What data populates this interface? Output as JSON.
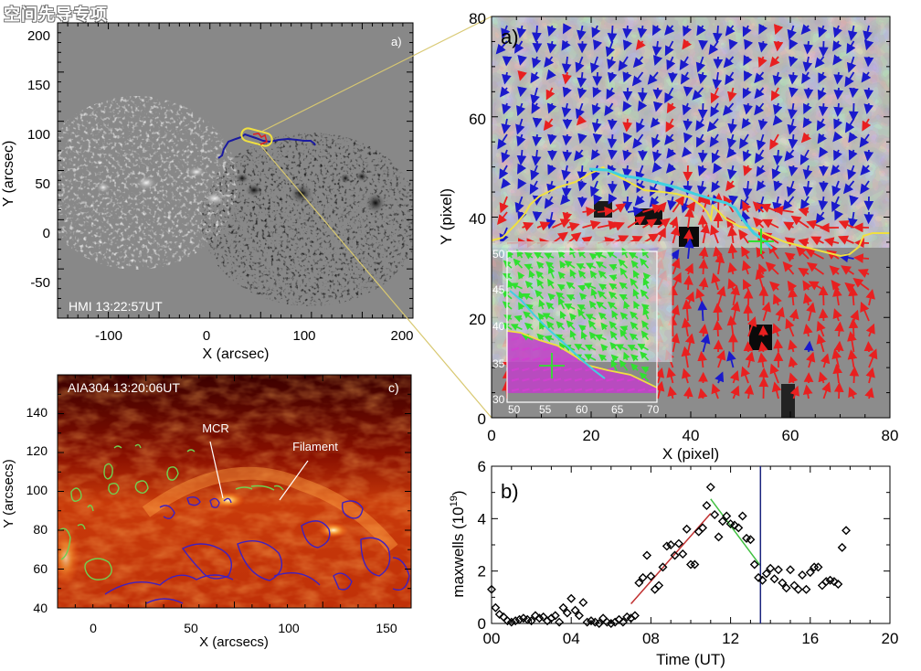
{
  "watermark": "空间先导专项",
  "panel_hmi": {
    "label": "a)",
    "annotation": "HMI 13:22:57UT",
    "xlabel": "X (arcsec)",
    "ylabel": "Y (arcsec)",
    "xticks": [
      "-100",
      "0",
      "100",
      "200"
    ],
    "yticks": [
      "200",
      "150",
      "100",
      "50",
      "0",
      "-50"
    ]
  },
  "panel_vector": {
    "label": "a)",
    "xlabel": "X (pixel)",
    "ylabel": "Y (pixel)",
    "xticks": [
      "0",
      "20",
      "40",
      "60",
      "80"
    ],
    "yticks": [
      "80",
      "60",
      "40",
      "20",
      "0"
    ],
    "inset": {
      "xticks": [
        "50",
        "55",
        "60",
        "65",
        "70"
      ],
      "yticks": [
        "50",
        "45",
        "40",
        "35",
        "30"
      ]
    }
  },
  "panel_aia": {
    "label": "c)",
    "annotation": "AIA304 13:20:06UT",
    "xlabel": "X (arcsecs)",
    "ylabel": "Y (arcsecs)",
    "xticks": [
      "0",
      "50",
      "100",
      "150"
    ],
    "yticks": [
      "140",
      "120",
      "100",
      "80",
      "60",
      "40"
    ],
    "callouts": [
      "MCR",
      "Filament"
    ]
  },
  "colors": {
    "positive_arrows": "#e82020",
    "negative_arrows": "#1a1acc",
    "pil_yellow": "#f0e040",
    "filament_cyan": "#40d0e0",
    "inset_green": "#30e030",
    "inset_magenta": "#d040d0",
    "fit_rise": "#c03030",
    "fit_decay": "#40c040",
    "marker_line": "#1a237e"
  },
  "chart_data": {
    "type": "scatter",
    "label": "b)",
    "xlabel": "Time (UT)",
    "ylabel": "maxwells (10",
    "ylabel_exp": "19",
    "ylabel_close": ")",
    "xticks": [
      "00",
      "04",
      "08",
      "12",
      "16",
      "20"
    ],
    "yticks": [
      "0",
      "2",
      "4",
      "6"
    ],
    "xlim": [
      0,
      20
    ],
    "ylim": [
      0,
      6
    ],
    "points": {
      "x": [
        0.0,
        0.2,
        0.4,
        0.6,
        0.8,
        1.0,
        1.2,
        1.4,
        1.6,
        1.8,
        2.0,
        2.2,
        2.4,
        2.6,
        2.8,
        3.0,
        3.2,
        3.4,
        3.6,
        3.8,
        4.0,
        4.2,
        4.4,
        4.6,
        4.8,
        5.0,
        5.2,
        5.4,
        5.6,
        5.8,
        6.0,
        6.2,
        6.4,
        6.6,
        6.8,
        7.0,
        7.2,
        7.4,
        7.6,
        7.8,
        8.0,
        8.2,
        8.4,
        8.6,
        8.8,
        9.0,
        9.2,
        9.4,
        9.6,
        9.8,
        10.0,
        10.2,
        10.4,
        10.6,
        10.8,
        11.0,
        11.2,
        11.4,
        11.6,
        11.8,
        12.0,
        12.2,
        12.4,
        12.6,
        12.8,
        13.0,
        13.2,
        13.4,
        13.6,
        13.8,
        14.0,
        14.2,
        14.4,
        14.6,
        14.8,
        15.0,
        15.2,
        15.4,
        15.6,
        15.8,
        16.0,
        16.2,
        16.4,
        16.6,
        16.8,
        17.0,
        17.2,
        17.4,
        17.6,
        17.8
      ],
      "y": [
        1.3,
        0.6,
        0.35,
        0.25,
        0.1,
        0.05,
        0.1,
        0.15,
        0.2,
        0.15,
        0.1,
        0.3,
        0.2,
        0.25,
        0.1,
        0.2,
        0.3,
        0.05,
        0.6,
        0.4,
        0.95,
        0.5,
        0.3,
        0.8,
        0.05,
        0.1,
        0.05,
        0.0,
        0.2,
        0.05,
        0.0,
        0.05,
        0.15,
        0.05,
        0.25,
        0.2,
        0.3,
        1.55,
        1.75,
        2.6,
        1.8,
        1.3,
        1.45,
        2.15,
        2.95,
        3.0,
        2.6,
        3.05,
        2.65,
        3.6,
        2.25,
        2.25,
        3.5,
        3.65,
        4.5,
        5.2,
        4.15,
        3.3,
        3.9,
        4.1,
        3.8,
        3.75,
        3.65,
        4.1,
        3.25,
        3.2,
        2.25,
        1.75,
        1.65,
        1.9,
        2.1,
        1.7,
        2.05,
        1.55,
        1.35,
        2.05,
        1.45,
        1.3,
        1.85,
        1.3,
        1.95,
        2.15,
        2.15,
        1.45,
        1.6,
        1.65,
        1.6,
        1.5,
        2.9,
        3.55
      ]
    },
    "fit_rise": {
      "x": [
        7.0,
        11.0
      ],
      "y": [
        0.75,
        4.2
      ]
    },
    "fit_decay": {
      "x": [
        11.0,
        13.5
      ],
      "y": [
        4.75,
        2.2
      ]
    },
    "vline_x": 13.5
  }
}
